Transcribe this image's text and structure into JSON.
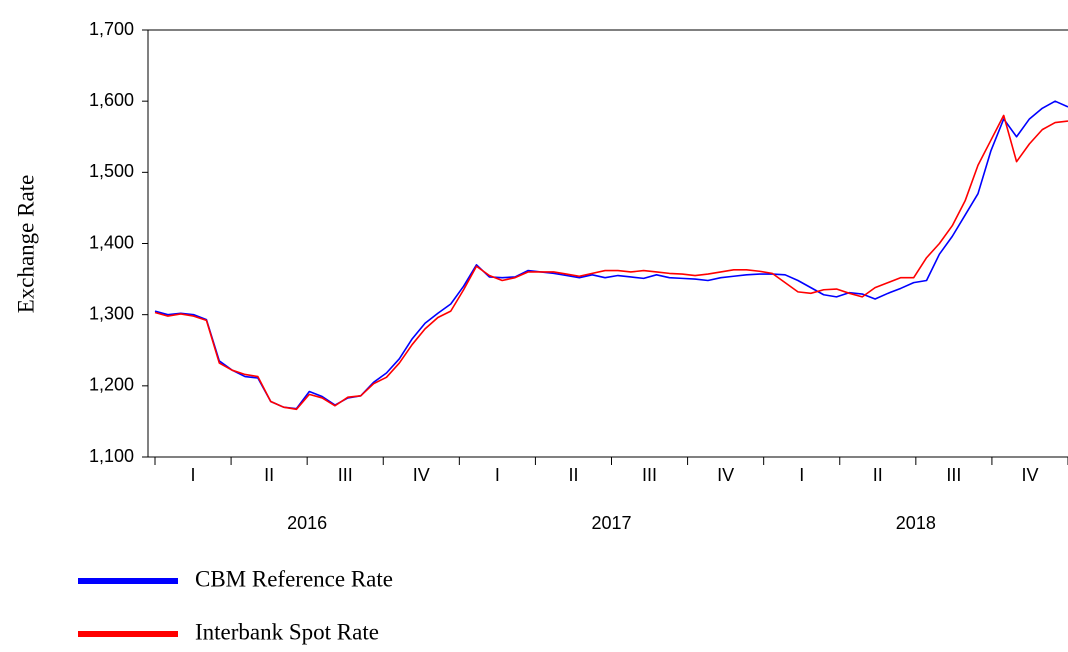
{
  "chart_data": {
    "type": "line",
    "y_label": "Exchange Rate",
    "categories": [
      null,
      null,
      "I",
      null,
      null,
      null,
      null,
      null,
      "II",
      null,
      null,
      null,
      null,
      null,
      "III",
      null,
      null,
      null,
      null,
      null,
      "IV",
      null,
      null,
      null,
      null,
      null,
      "I",
      null,
      null,
      null,
      null,
      null,
      "II",
      null,
      null,
      null,
      null,
      null,
      "III",
      null,
      null,
      null,
      null,
      null,
      "IV",
      null,
      null,
      null,
      null,
      null,
      "I",
      null,
      null,
      null,
      null,
      null,
      "II",
      null,
      null,
      null,
      null,
      null,
      "III",
      null,
      null,
      null,
      null,
      null,
      "IV",
      null,
      null,
      null
    ],
    "x_groups": [
      "2016",
      "2017",
      "2018"
    ],
    "series": [
      {
        "name": "CBM Reference Rate",
        "color": "#0000ff",
        "values": [
          1305,
          1300,
          1302,
          1300,
          1293,
          1235,
          1222,
          1213,
          1211,
          1178,
          1170,
          1168,
          1192,
          1185,
          1173,
          1183,
          1186,
          1205,
          1218,
          1238,
          1266,
          1288,
          1302,
          1315,
          1340,
          1370,
          1353,
          1352,
          1353,
          1362,
          1360,
          1358,
          1355,
          1352,
          1356,
          1352,
          1355,
          1353,
          1351,
          1356,
          1352,
          1351,
          1350,
          1348,
          1352,
          1354,
          1356,
          1357,
          1357,
          1356,
          1348,
          1338,
          1328,
          1325,
          1331,
          1329,
          1322,
          1330,
          1337,
          1345,
          1348,
          1385,
          1410,
          1440,
          1470,
          1530,
          1575,
          1550,
          1575,
          1590,
          1600,
          1592
        ]
      },
      {
        "name": "Interbank Spot Rate",
        "color": "#ff0000",
        "values": [
          1303,
          1298,
          1301,
          1298,
          1292,
          1232,
          1222,
          1216,
          1213,
          1178,
          1170,
          1167,
          1188,
          1183,
          1172,
          1184,
          1186,
          1203,
          1212,
          1232,
          1258,
          1280,
          1296,
          1305,
          1335,
          1368,
          1355,
          1348,
          1352,
          1360,
          1360,
          1360,
          1357,
          1354,
          1358,
          1362,
          1362,
          1360,
          1362,
          1360,
          1358,
          1357,
          1355,
          1357,
          1360,
          1363,
          1363,
          1361,
          1358,
          1345,
          1332,
          1330,
          1335,
          1336,
          1330,
          1325,
          1338,
          1345,
          1352,
          1352,
          1380,
          1400,
          1425,
          1460,
          1510,
          1545,
          1580,
          1515,
          1540,
          1560,
          1570,
          1572
        ]
      }
    ],
    "ylim": [
      1100,
      1700
    ],
    "yticks": [
      {
        "value": 1100,
        "label": "1,100"
      },
      {
        "value": 1200,
        "label": "1,200"
      },
      {
        "value": 1300,
        "label": "1,300"
      },
      {
        "value": 1400,
        "label": "1,400"
      },
      {
        "value": 1500,
        "label": "1,500"
      },
      {
        "value": 1600,
        "label": "1,600"
      },
      {
        "value": 1700,
        "label": "1,700"
      }
    ],
    "grid": false,
    "legend": "bottom-left"
  }
}
